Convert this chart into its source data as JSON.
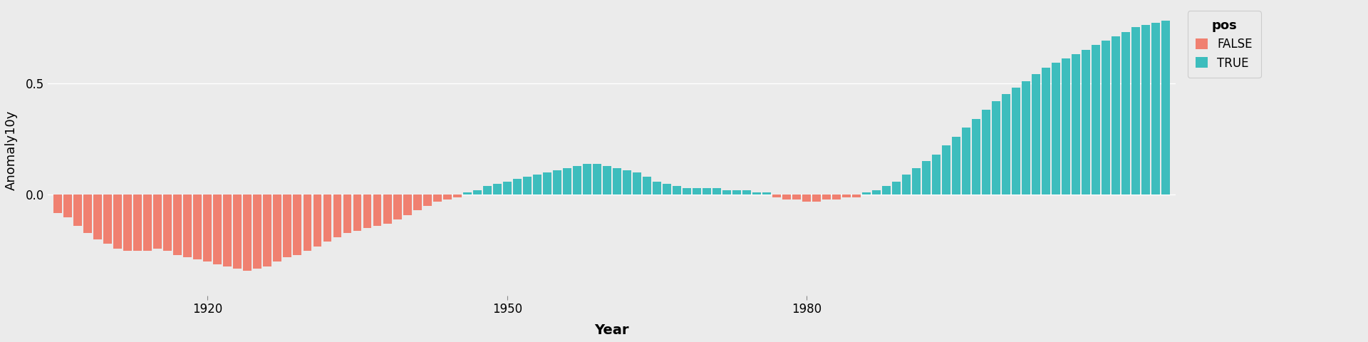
{
  "title": "",
  "xlabel": "Year",
  "ylabel": "Anomaly10y",
  "bg_color": "#EBEBEB",
  "panel_bg": "#EBEBEB",
  "color_pos": "#3DBDBD",
  "color_neg": "#F08070",
  "legend_title": "pos",
  "legend_false": "FALSE",
  "legend_true": "TRUE",
  "ylim": [
    -0.45,
    0.85
  ],
  "yticks": [
    0.0,
    0.5
  ],
  "ytick_labels": [
    "0.0",
    "0.5"
  ],
  "xticks": [
    1920,
    1950,
    1980
  ],
  "years": [
    1905,
    1906,
    1907,
    1908,
    1909,
    1910,
    1911,
    1912,
    1913,
    1914,
    1915,
    1916,
    1917,
    1918,
    1919,
    1920,
    1921,
    1922,
    1923,
    1924,
    1925,
    1926,
    1927,
    1928,
    1929,
    1930,
    1931,
    1932,
    1933,
    1934,
    1935,
    1936,
    1937,
    1938,
    1939,
    1940,
    1941,
    1942,
    1943,
    1944,
    1945,
    1946,
    1947,
    1948,
    1949,
    1950,
    1951,
    1952,
    1953,
    1954,
    1955,
    1956,
    1957,
    1958,
    1959,
    1960,
    1961,
    1962,
    1963,
    1964,
    1965,
    1966,
    1967,
    1968,
    1969,
    1970,
    1971,
    1972,
    1973,
    1974,
    1975,
    1976,
    1977,
    1978,
    1979,
    1980,
    1981,
    1982,
    1983,
    1984,
    1985,
    1986,
    1987,
    1988,
    1989,
    1990,
    1991,
    1992,
    1993,
    1994,
    1995,
    1996,
    1997,
    1998,
    1999,
    2000,
    2001,
    2002,
    2003,
    2004,
    2005,
    2006,
    2007,
    2008,
    2009,
    2010,
    2011,
    2012,
    2013,
    2014,
    2015,
    2016
  ],
  "values": [
    -0.08,
    -0.1,
    -0.14,
    -0.17,
    -0.2,
    -0.22,
    -0.24,
    -0.25,
    -0.25,
    -0.25,
    -0.24,
    -0.25,
    -0.27,
    -0.28,
    -0.29,
    -0.3,
    -0.31,
    -0.32,
    -0.33,
    -0.34,
    -0.33,
    -0.32,
    -0.3,
    -0.28,
    -0.27,
    -0.25,
    -0.23,
    -0.21,
    -0.19,
    -0.17,
    -0.16,
    -0.15,
    -0.14,
    -0.13,
    -0.11,
    -0.09,
    -0.07,
    -0.05,
    -0.03,
    -0.02,
    -0.01,
    0.01,
    0.02,
    0.04,
    0.05,
    0.06,
    0.07,
    0.08,
    0.09,
    0.1,
    0.11,
    0.12,
    0.13,
    0.14,
    0.14,
    0.13,
    0.12,
    0.11,
    0.1,
    0.08,
    0.06,
    0.05,
    0.04,
    0.03,
    0.03,
    0.03,
    0.03,
    0.02,
    0.02,
    0.02,
    0.01,
    0.01,
    -0.01,
    -0.02,
    -0.02,
    -0.03,
    -0.03,
    -0.02,
    -0.02,
    -0.01,
    -0.01,
    0.01,
    0.02,
    0.04,
    0.06,
    0.09,
    0.12,
    0.15,
    0.18,
    0.22,
    0.26,
    0.3,
    0.34,
    0.38,
    0.42,
    0.45,
    0.48,
    0.51,
    0.54,
    0.57,
    0.59,
    0.61,
    0.63,
    0.65,
    0.67,
    0.69,
    0.71,
    0.73,
    0.75,
    0.76,
    0.77,
    0.78
  ]
}
